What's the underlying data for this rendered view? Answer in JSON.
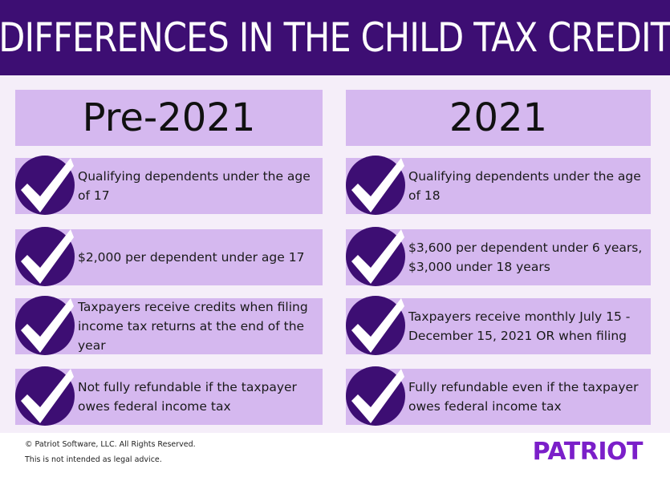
{
  "title": "DIFFERENCES IN THE CHILD TAX CREDIT",
  "columns": [
    {
      "heading": "Pre-2021",
      "items": [
        "Qualifying dependents under the age of 17",
        "$2,000 per dependent under age 17",
        "Taxpayers receive credits when filing income tax returns at the end of the year",
        "Not fully refundable if the taxpayer owes federal income tax"
      ]
    },
    {
      "heading": "2021",
      "items": [
        "Qualifying dependents under the age of 18",
        "$3,600 per dependent under 6 years, $3,000 under 18 years",
        "Taxpayers receive monthly July 15 - December 15, 2021 OR when filing",
        "Fully refundable even if the taxpayer owes federal income tax"
      ]
    }
  ],
  "footer": {
    "copyright": "© Patriot Software, LLC. All Rights Reserved.",
    "disclaimer": "This is not intended as legal advice.",
    "logo": "PATRIOT"
  },
  "colors": {
    "header_bg": "#3d0e73",
    "panel_bg": "#d5b8ef",
    "page_bg": "#f5eef9",
    "check_circle": "#3d0e73",
    "logo": "#7b1fc9"
  },
  "icons": [
    "check-icon"
  ]
}
